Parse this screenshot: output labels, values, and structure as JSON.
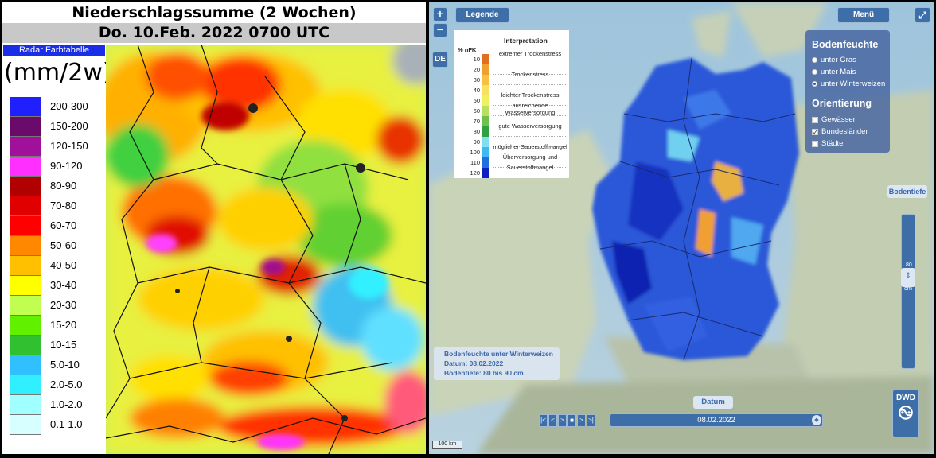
{
  "left_panel": {
    "title": "Niederschlagssumme (2 Wochen)",
    "subtitle": "Do. 10.Feb. 2022 0700 UTC",
    "legend_header": "Radar Farbtabelle",
    "unit": "(mm/2w)",
    "scale": [
      {
        "label": "200-300",
        "color": "#2020ff"
      },
      {
        "label": "150-200",
        "color": "#6a0a6a"
      },
      {
        "label": "120-150",
        "color": "#a0109a"
      },
      {
        "label": "90-120",
        "color": "#ff30ff"
      },
      {
        "label": "80-90",
        "color": "#b00000"
      },
      {
        "label": "70-80",
        "color": "#e00000"
      },
      {
        "label": "60-70",
        "color": "#ff0000"
      },
      {
        "label": "50-60",
        "color": "#ff8800"
      },
      {
        "label": "40-50",
        "color": "#ffc000"
      },
      {
        "label": "30-40",
        "color": "#ffff00"
      },
      {
        "label": "20-30",
        "color": "#c0ff50"
      },
      {
        "label": "15-20",
        "color": "#60f000"
      },
      {
        "label": "10-15",
        "color": "#30c030"
      },
      {
        "label": "5.0-10",
        "color": "#30c0ff"
      },
      {
        "label": "2.0-5.0",
        "color": "#30f0ff"
      },
      {
        "label": "1.0-2.0",
        "color": "#a0ffff"
      },
      {
        "label": "0.1-1.0",
        "color": "#d8ffff"
      }
    ]
  },
  "right_panel": {
    "zoom_in": "+",
    "zoom_out": "−",
    "legend_button": "Legende",
    "lang_button": "DE",
    "menu_button": "Menü",
    "fullscreen_icon": "expand-icon",
    "legend": {
      "title": "Interpretation",
      "unit": "% nFK",
      "rows": [
        {
          "value": "10",
          "color": "#e07020",
          "text": "extremer Trockenstress"
        },
        {
          "value": "20",
          "color": "#f0a030",
          "text": ""
        },
        {
          "value": "30",
          "color": "#f8c040",
          "text": "Trockenstress"
        },
        {
          "value": "40",
          "color": "#f8e060",
          "text": ""
        },
        {
          "value": "50",
          "color": "#f0f060",
          "text": "leichter Trockenstress"
        },
        {
          "value": "60",
          "color": "#b8e060",
          "text": "ausreichende Wasserversorgung"
        },
        {
          "value": "70",
          "color": "#70c050",
          "text": ""
        },
        {
          "value": "80",
          "color": "#30a040",
          "text": "gute Wasserversorgung"
        },
        {
          "value": "90",
          "color": "#80e0f0",
          "text": ""
        },
        {
          "value": "100",
          "color": "#40b8f0",
          "text": "möglicher Sauerstoffmangel"
        },
        {
          "value": "110",
          "color": "#2070e0",
          "text": "Überversorgung und"
        },
        {
          "value": "120",
          "color": "#1020c0",
          "text": "Sauerstoffmangel"
        }
      ]
    },
    "controls": {
      "section1_title": "Bodenfeuchte",
      "radios": [
        {
          "label": "unter Gras",
          "selected": false
        },
        {
          "label": "unter Mais",
          "selected": false
        },
        {
          "label": "unter Winterweizen",
          "selected": true
        }
      ],
      "section2_title": "Orientierung",
      "checks": [
        {
          "label": "Gewässer",
          "checked": false
        },
        {
          "label": "Bundesländer",
          "checked": true
        },
        {
          "label": "Städte",
          "checked": false
        }
      ]
    },
    "info": {
      "line1": "Bodenfeuchte unter Winterweizen",
      "line2": "Datum: 08.02.2022",
      "line3": "Bodentiefe: 80 bis 90 cm"
    },
    "depth": {
      "label": "Bodentiefe",
      "value": "80",
      "unit": "cm"
    },
    "time": {
      "label": "Datum",
      "date": "08.02.2022",
      "nav_buttons": [
        "|<",
        "<",
        ">",
        "■",
        ">",
        ">|"
      ]
    },
    "logo_text": "DWD",
    "scalebar": "100 km"
  }
}
